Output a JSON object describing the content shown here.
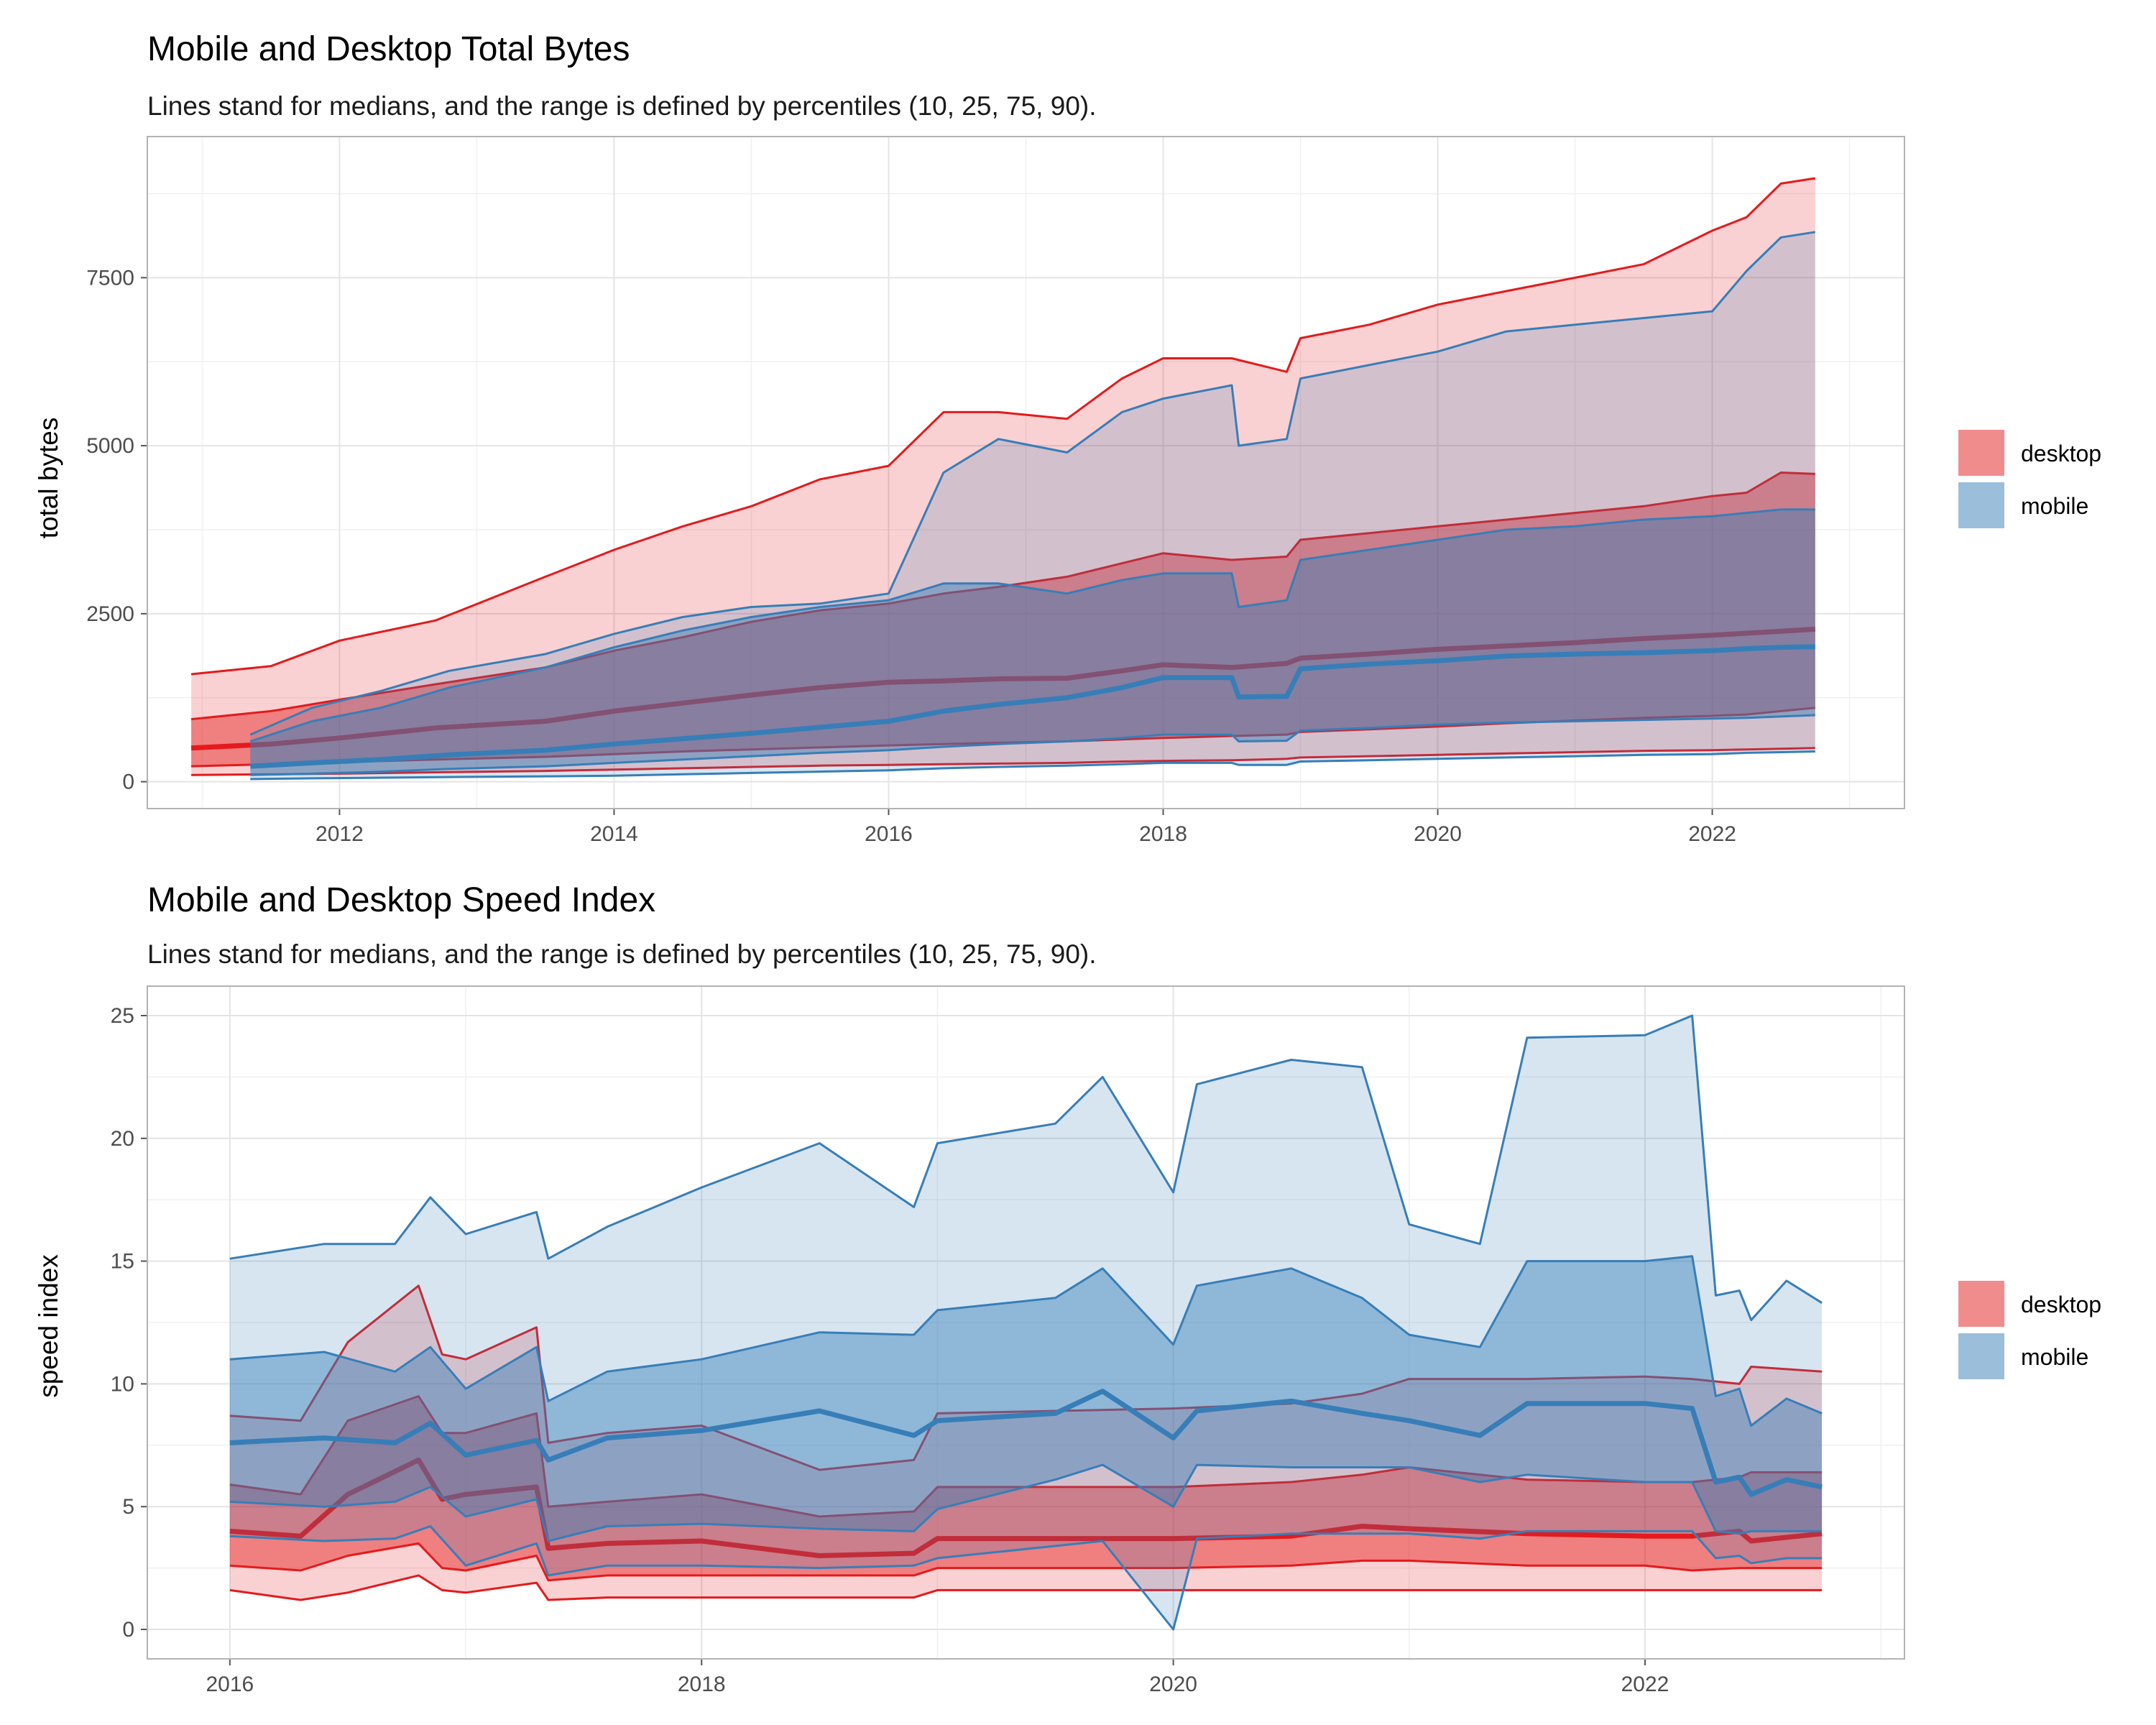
{
  "colors": {
    "desktop": "#E41A1C",
    "mobile": "#377EB8"
  },
  "chart_data": [
    {
      "type": "area",
      "title": "Mobile and Desktop Total Bytes",
      "subtitle": "Lines stand for medians, and the range is defined by percentiles (10, 25, 75, 90).",
      "xlabel": "",
      "ylabel": "total bytes",
      "x_ticks": [
        "2012",
        "2014",
        "2016",
        "2018",
        "2020",
        "2022"
      ],
      "y_ticks": [
        "0",
        "2500",
        "5000",
        "7500"
      ],
      "xlim": [
        2010.6,
        2023.4
      ],
      "ylim": [
        -400,
        9600
      ],
      "grid": true,
      "legend_position": "right",
      "legend": [
        "desktop",
        "mobile"
      ],
      "series": [
        {
          "name": "desktop",
          "x": [
            2010.92,
            2011.5,
            2012.0,
            2012.7,
            2013.5,
            2014.0,
            2014.5,
            2015.0,
            2015.5,
            2016.0,
            2016.4,
            2016.8,
            2017.3,
            2017.7,
            2018.0,
            2018.5,
            2018.9,
            2019.0,
            2019.5,
            2020.0,
            2020.5,
            2021.0,
            2021.5,
            2022.0,
            2022.25,
            2022.5,
            2022.75
          ],
          "p10": [
            100,
            110,
            120,
            140,
            160,
            180,
            200,
            220,
            240,
            250,
            260,
            270,
            280,
            300,
            310,
            320,
            340,
            360,
            380,
            400,
            420,
            440,
            460,
            470,
            480,
            490,
            500
          ],
          "p25": [
            230,
            260,
            290,
            330,
            370,
            410,
            450,
            480,
            510,
            540,
            560,
            580,
            600,
            630,
            650,
            680,
            700,
            740,
            780,
            820,
            870,
            910,
            950,
            980,
            1000,
            1050,
            1100
          ],
          "p50": [
            500,
            560,
            650,
            800,
            900,
            1050,
            1170,
            1290,
            1400,
            1480,
            1500,
            1530,
            1540,
            1650,
            1740,
            1700,
            1760,
            1840,
            1900,
            1970,
            2020,
            2070,
            2130,
            2180,
            2210,
            2240,
            2270
          ],
          "p75": [
            930,
            1050,
            1220,
            1450,
            1700,
            1950,
            2150,
            2380,
            2550,
            2650,
            2800,
            2900,
            3050,
            3250,
            3400,
            3300,
            3350,
            3600,
            3700,
            3800,
            3900,
            4000,
            4100,
            4250,
            4300,
            4600,
            4580
          ],
          "p90": [
            1600,
            1720,
            2100,
            2400,
            3050,
            3450,
            3800,
            4100,
            4500,
            4700,
            5500,
            5500,
            5400,
            6000,
            6300,
            6300,
            6100,
            6600,
            6800,
            7100,
            7300,
            7500,
            7700,
            8200,
            8400,
            8900,
            8980
          ]
        },
        {
          "name": "mobile",
          "x": [
            2011.35,
            2011.8,
            2012.3,
            2012.8,
            2013.5,
            2014.0,
            2014.5,
            2015.0,
            2015.5,
            2016.0,
            2016.4,
            2016.8,
            2017.3,
            2017.7,
            2018.0,
            2018.5,
            2018.55,
            2018.9,
            2019.0,
            2019.5,
            2020.0,
            2020.5,
            2021.0,
            2021.5,
            2022.0,
            2022.25,
            2022.5,
            2022.75
          ],
          "p10": [
            40,
            50,
            60,
            70,
            80,
            90,
            110,
            130,
            150,
            170,
            200,
            220,
            240,
            260,
            280,
            280,
            250,
            250,
            300,
            320,
            340,
            360,
            380,
            400,
            410,
            430,
            440,
            450
          ],
          "p25": [
            100,
            120,
            150,
            190,
            230,
            280,
            330,
            380,
            430,
            470,
            520,
            560,
            600,
            650,
            700,
            700,
            600,
            610,
            760,
            800,
            850,
            880,
            900,
            920,
            940,
            950,
            970,
            990
          ],
          "p50": [
            230,
            280,
            330,
            400,
            470,
            560,
            640,
            720,
            810,
            900,
            1050,
            1150,
            1250,
            1400,
            1550,
            1550,
            1260,
            1270,
            1680,
            1750,
            1800,
            1870,
            1900,
            1920,
            1950,
            1980,
            2000,
            2010
          ],
          "p75": [
            600,
            900,
            1100,
            1400,
            1700,
            2000,
            2250,
            2450,
            2600,
            2700,
            2950,
            2950,
            2800,
            3000,
            3100,
            3100,
            2600,
            2700,
            3300,
            3450,
            3600,
            3750,
            3800,
            3900,
            3950,
            4000,
            4050,
            4050
          ],
          "p90": [
            700,
            1100,
            1350,
            1650,
            1900,
            2200,
            2450,
            2600,
            2650,
            2800,
            4600,
            5100,
            4900,
            5500,
            5700,
            5900,
            5000,
            5100,
            6000,
            6200,
            6400,
            6700,
            6800,
            6900,
            7000,
            7600,
            8100,
            8180
          ]
        }
      ]
    },
    {
      "type": "area",
      "title": "Mobile and Desktop Speed Index",
      "subtitle": "Lines stand for medians, and the range is defined by percentiles (10, 25, 75, 90).",
      "xlabel": "",
      "ylabel": "speed index",
      "x_ticks": [
        "2016",
        "2018",
        "2020",
        "2022"
      ],
      "y_ticks": [
        "0",
        "5",
        "10",
        "15",
        "20",
        "25"
      ],
      "xlim": [
        2015.65,
        2023.1
      ],
      "ylim": [
        -1.2,
        26.2
      ],
      "grid": true,
      "legend_position": "right",
      "legend": [
        "desktop",
        "mobile"
      ],
      "series": [
        {
          "name": "desktop",
          "x": [
            2016.0,
            2016.3,
            2016.5,
            2016.8,
            2016.9,
            2017.0,
            2017.3,
            2017.35,
            2017.6,
            2018.0,
            2018.5,
            2018.9,
            2019.0,
            2019.5,
            2020.0,
            2020.5,
            2020.8,
            2021.0,
            2021.5,
            2022.0,
            2022.2,
            2022.4,
            2022.45,
            2022.75
          ],
          "p10": [
            1.6,
            1.2,
            1.5,
            2.2,
            1.6,
            1.5,
            1.9,
            1.2,
            1.3,
            1.3,
            1.3,
            1.3,
            1.6,
            1.6,
            1.6,
            1.6,
            1.6,
            1.6,
            1.6,
            1.6,
            1.6,
            1.6,
            1.6,
            1.6
          ],
          "p25": [
            2.6,
            2.4,
            3.0,
            3.5,
            2.5,
            2.4,
            3.0,
            2.0,
            2.2,
            2.2,
            2.2,
            2.2,
            2.5,
            2.5,
            2.5,
            2.6,
            2.8,
            2.8,
            2.6,
            2.6,
            2.4,
            2.5,
            2.5,
            2.5
          ],
          "p50": [
            4.0,
            3.8,
            5.5,
            6.9,
            5.3,
            5.5,
            5.8,
            3.3,
            3.5,
            3.6,
            3.0,
            3.1,
            3.7,
            3.7,
            3.7,
            3.8,
            4.2,
            4.1,
            3.9,
            3.8,
            3.8,
            4.0,
            3.6,
            3.9
          ],
          "p75": [
            5.9,
            5.5,
            8.5,
            9.5,
            8.0,
            8.0,
            8.8,
            5.0,
            5.2,
            5.5,
            4.6,
            4.8,
            5.8,
            5.8,
            5.8,
            6.0,
            6.3,
            6.6,
            6.1,
            6.0,
            6.0,
            6.2,
            6.4,
            6.4
          ],
          "p90": [
            8.7,
            8.5,
            11.7,
            14.0,
            11.2,
            11.0,
            12.3,
            7.6,
            8.0,
            8.3,
            6.5,
            6.9,
            8.8,
            8.9,
            9.0,
            9.2,
            9.6,
            10.2,
            10.2,
            10.3,
            10.2,
            10.0,
            10.7,
            10.5
          ]
        },
        {
          "name": "mobile",
          "x": [
            2016.0,
            2016.4,
            2016.7,
            2016.85,
            2017.0,
            2017.3,
            2017.35,
            2017.6,
            2018.0,
            2018.5,
            2018.9,
            2019.0,
            2019.5,
            2019.7,
            2020.0,
            2020.1,
            2020.5,
            2020.8,
            2021.0,
            2021.3,
            2021.5,
            2022.0,
            2022.2,
            2022.3,
            2022.4,
            2022.45,
            2022.6,
            2022.75
          ],
          "p10": [
            3.8,
            3.6,
            3.7,
            4.2,
            2.6,
            3.5,
            2.2,
            2.6,
            2.6,
            2.5,
            2.6,
            2.9,
            3.4,
            3.6,
            0.0,
            3.7,
            3.9,
            3.9,
            3.9,
            3.7,
            4.0,
            4.0,
            4.0,
            2.9,
            3.0,
            2.7,
            2.9,
            2.9
          ],
          "p25": [
            5.2,
            5.0,
            5.2,
            5.8,
            4.6,
            5.3,
            3.6,
            4.2,
            4.3,
            4.1,
            4.0,
            4.9,
            6.1,
            6.7,
            5.0,
            6.7,
            6.6,
            6.6,
            6.6,
            6.0,
            6.3,
            6.0,
            6.0,
            4.0,
            3.9,
            4.0,
            4.0,
            4.0
          ],
          "p50": [
            7.6,
            7.8,
            7.6,
            8.4,
            7.1,
            7.7,
            6.9,
            7.8,
            8.1,
            8.9,
            7.9,
            8.5,
            8.8,
            9.7,
            7.8,
            8.9,
            9.3,
            8.8,
            8.5,
            7.9,
            9.2,
            9.2,
            9.0,
            6.0,
            6.2,
            5.5,
            6.1,
            5.8
          ],
          "p75": [
            11.0,
            11.3,
            10.5,
            11.5,
            9.8,
            11.5,
            9.3,
            10.5,
            11.0,
            12.1,
            12.0,
            13.0,
            13.5,
            14.7,
            11.6,
            14.0,
            14.7,
            13.5,
            12.0,
            11.5,
            15.0,
            15.0,
            15.2,
            9.5,
            9.8,
            8.3,
            9.4,
            8.8
          ],
          "p90": [
            15.1,
            15.7,
            15.7,
            17.6,
            16.1,
            17.0,
            15.1,
            16.4,
            18.0,
            19.8,
            17.2,
            19.8,
            20.6,
            22.5,
            17.8,
            22.2,
            23.2,
            22.9,
            16.5,
            15.7,
            24.1,
            24.2,
            25.0,
            13.6,
            13.8,
            12.6,
            14.2,
            13.3
          ]
        }
      ]
    }
  ]
}
